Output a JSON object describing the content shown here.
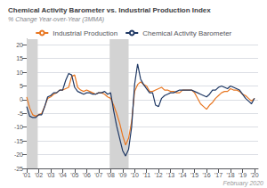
{
  "chart_data": {
    "type": "line",
    "title": "Chemical Activity Barometer vs. Industrial Production Index",
    "subtitle": "% Change Year-over-Year (3MMA)",
    "annotations": [
      "February 2020"
    ],
    "recessions": {
      "spans": [
        [
          2001.0,
          2001.92
        ],
        [
          2007.92,
          2009.5
        ]
      ],
      "color": "#d3d3d3"
    },
    "x": [
      2001.0,
      2001.25,
      2001.5,
      2001.75,
      2002.0,
      2002.25,
      2002.5,
      2002.75,
      2003.0,
      2003.25,
      2003.5,
      2003.75,
      2004.0,
      2004.25,
      2004.5,
      2004.75,
      2005.0,
      2005.25,
      2005.5,
      2005.75,
      2006.0,
      2006.25,
      2006.5,
      2006.75,
      2007.0,
      2007.25,
      2007.5,
      2007.75,
      2008.0,
      2008.25,
      2008.5,
      2008.75,
      2009.0,
      2009.25,
      2009.5,
      2009.75,
      2010.0,
      2010.25,
      2010.5,
      2010.75,
      2011.0,
      2011.25,
      2011.5,
      2011.75,
      2012.0,
      2012.25,
      2012.5,
      2012.75,
      2013.0,
      2013.25,
      2013.5,
      2013.75,
      2014.0,
      2014.25,
      2014.5,
      2014.75,
      2015.0,
      2015.25,
      2015.5,
      2015.75,
      2016.0,
      2016.25,
      2016.5,
      2016.75,
      2017.0,
      2017.25,
      2017.5,
      2017.75,
      2018.0,
      2018.25,
      2018.5,
      2018.75,
      2019.0,
      2019.25,
      2019.5,
      2019.75,
      2020.0
    ],
    "series": [
      {
        "name": "Industrial Production",
        "color": "#e87722",
        "values": [
          1.0,
          -3.0,
          -5.5,
          -6.0,
          -5.5,
          -5.0,
          -2.5,
          0.5,
          1.0,
          2.0,
          2.5,
          3.5,
          3.5,
          4.0,
          4.5,
          8.5,
          9.0,
          4.5,
          3.5,
          3.0,
          3.5,
          3.0,
          2.5,
          2.0,
          2.5,
          2.5,
          2.0,
          1.0,
          0.5,
          -2.0,
          -5.0,
          -8.5,
          -13.0,
          -16.5,
          -14.0,
          -8.0,
          3.0,
          5.5,
          6.5,
          5.5,
          5.0,
          3.0,
          3.0,
          3.5,
          4.0,
          4.5,
          3.5,
          3.5,
          3.0,
          3.0,
          2.5,
          2.5,
          3.5,
          3.5,
          3.5,
          3.5,
          2.5,
          0.5,
          -1.5,
          -2.5,
          -3.5,
          -2.0,
          -1.0,
          0.5,
          1.5,
          2.5,
          3.0,
          3.0,
          4.0,
          3.5,
          3.5,
          3.0,
          2.0,
          1.5,
          0.5,
          -0.5,
          0.5
        ]
      },
      {
        "name": "Chemical Activity Barometer",
        "color": "#1f3864",
        "values": [
          -2.5,
          -6.0,
          -6.5,
          -6.5,
          -5.5,
          -5.5,
          -2.5,
          1.0,
          1.5,
          2.5,
          2.5,
          3.5,
          3.5,
          7.0,
          9.5,
          9.0,
          4.5,
          3.0,
          2.5,
          2.0,
          2.5,
          2.5,
          2.0,
          2.0,
          2.5,
          2.5,
          3.0,
          2.0,
          2.5,
          -4.0,
          -9.5,
          -14.0,
          -18.5,
          -20.5,
          -18.0,
          -10.0,
          5.5,
          13.0,
          7.5,
          5.5,
          4.0,
          2.5,
          2.5,
          -2.0,
          -2.5,
          0.5,
          1.5,
          2.0,
          2.5,
          2.5,
          3.0,
          3.5,
          3.5,
          3.5,
          3.5,
          3.5,
          3.0,
          2.5,
          2.0,
          1.5,
          1.0,
          2.0,
          3.5,
          3.5,
          4.5,
          5.0,
          4.5,
          4.0,
          5.0,
          4.5,
          4.0,
          3.5,
          2.0,
          0.5,
          -0.5,
          -1.5,
          0.5
        ]
      }
    ],
    "xlim": [
      2001.0,
      2020.3
    ],
    "xticks": [
      {
        "value": 2001,
        "label": "'01"
      },
      {
        "value": 2002,
        "label": "'02"
      },
      {
        "value": 2003,
        "label": "'03"
      },
      {
        "value": 2004,
        "label": "'04"
      },
      {
        "value": 2005,
        "label": "'05"
      },
      {
        "value": 2006,
        "label": "'06"
      },
      {
        "value": 2007,
        "label": "'07"
      },
      {
        "value": 2008,
        "label": "'08"
      },
      {
        "value": 2009,
        "label": "'09"
      },
      {
        "value": 2010,
        "label": "'10"
      },
      {
        "value": 2011,
        "label": "'11"
      },
      {
        "value": 2012,
        "label": "'12"
      },
      {
        "value": 2013,
        "label": "'13"
      },
      {
        "value": 2014,
        "label": "'14"
      },
      {
        "value": 2015,
        "label": "'15"
      },
      {
        "value": 2016,
        "label": "'16"
      },
      {
        "value": 2017,
        "label": "'17"
      },
      {
        "value": 2018,
        "label": "'18"
      },
      {
        "value": 2019,
        "label": "'19"
      },
      {
        "value": 2020,
        "label": "'20"
      }
    ],
    "ylim": [
      -25,
      22
    ],
    "yticks": [
      -25,
      -20,
      -15,
      -10,
      -5,
      0,
      5,
      10,
      15,
      20
    ],
    "grid": "y",
    "legend": "top"
  }
}
